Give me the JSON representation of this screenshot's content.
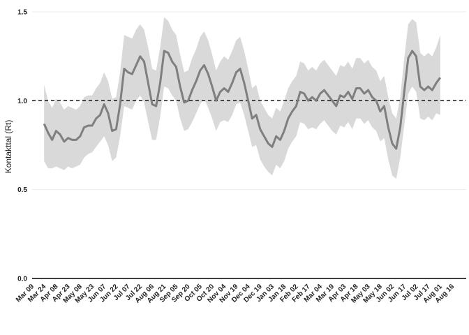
{
  "chart_data": {
    "type": "line",
    "title": "",
    "xlabel": "",
    "ylabel": "Kontakttal (Rt)",
    "ylim": [
      0,
      1.5
    ],
    "yticks": [
      "0.0",
      "0.5",
      "1.0",
      "1.5"
    ],
    "y_tick_values": [
      0,
      0.5,
      1.0,
      1.5
    ],
    "reference_line": {
      "y": 1.0,
      "style": "dashed",
      "color": "#000000"
    },
    "grid": true,
    "x_tick_labels": [
      "Mar 09",
      "Mar 24",
      "Apr 08",
      "Apr 23",
      "May 08",
      "May 23",
      "Jun 07",
      "Jun 22",
      "Jul 07",
      "Jul 22",
      "Aug 06",
      "Aug 21",
      "Sep 05",
      "Sep 20",
      "Oct 05",
      "Oct 20",
      "Nov 04",
      "Nov 19",
      "Dec 04",
      "Dec 19",
      "Jan 03",
      "Jan 18",
      "Feb 02",
      "Feb 17",
      "Mar 04",
      "Mar 19",
      "Apr 03",
      "Apr 18",
      "May 03",
      "May 18",
      "Jun 02",
      "Jun 17",
      "Jul 02",
      "Jul 17",
      "Aug 01",
      "Aug 16"
    ],
    "colors": {
      "line": "#7f7f7f",
      "ribbon": "#d9d9d9",
      "grid": "#ebebeb",
      "axis": "#000000"
    },
    "series": [
      {
        "x": [
          "2020-03-24",
          "2020-03-29",
          "2020-04-03",
          "2020-04-08",
          "2020-04-13",
          "2020-04-18",
          "2020-04-23",
          "2020-04-28",
          "2020-05-03",
          "2020-05-08",
          "2020-05-13",
          "2020-05-18",
          "2020-05-23",
          "2020-05-28",
          "2020-06-02",
          "2020-06-07",
          "2020-06-12",
          "2020-06-17",
          "2020-06-22",
          "2020-06-27",
          "2020-07-02",
          "2020-07-07",
          "2020-07-12",
          "2020-07-17",
          "2020-07-22",
          "2020-07-27",
          "2020-08-01",
          "2020-08-06",
          "2020-08-11",
          "2020-08-16",
          "2020-08-21",
          "2020-08-26",
          "2020-08-31",
          "2020-09-05",
          "2020-09-10",
          "2020-09-15",
          "2020-09-20",
          "2020-09-25",
          "2020-09-30",
          "2020-10-05",
          "2020-10-10",
          "2020-10-15",
          "2020-10-20",
          "2020-10-25",
          "2020-10-30",
          "2020-11-04",
          "2020-11-09",
          "2020-11-14",
          "2020-11-19",
          "2020-11-24",
          "2020-11-29",
          "2020-12-04",
          "2020-12-09",
          "2020-12-14",
          "2020-12-19",
          "2020-12-24",
          "2020-12-29",
          "2021-01-03",
          "2021-01-08",
          "2021-01-13",
          "2021-01-18",
          "2021-01-23",
          "2021-01-28",
          "2021-02-02",
          "2021-02-07",
          "2021-02-12",
          "2021-02-17",
          "2021-02-22",
          "2021-02-27",
          "2021-03-04",
          "2021-03-09",
          "2021-03-14",
          "2021-03-19",
          "2021-03-24",
          "2021-03-29",
          "2021-04-03",
          "2021-04-08",
          "2021-04-13",
          "2021-04-18",
          "2021-04-23",
          "2021-04-28",
          "2021-05-03",
          "2021-05-08",
          "2021-05-13",
          "2021-05-18",
          "2021-05-23",
          "2021-05-28",
          "2021-06-02",
          "2021-06-07",
          "2021-06-12",
          "2021-06-17",
          "2021-06-22",
          "2021-06-27",
          "2021-07-02",
          "2021-07-07",
          "2021-07-12",
          "2021-07-17",
          "2021-07-22",
          "2021-07-27",
          "2021-08-01"
        ],
        "y": [
          0.87,
          0.82,
          0.78,
          0.83,
          0.81,
          0.77,
          0.79,
          0.78,
          0.78,
          0.8,
          0.85,
          0.86,
          0.86,
          0.9,
          0.92,
          0.98,
          0.93,
          0.83,
          0.84,
          0.98,
          1.18,
          1.16,
          1.15,
          1.2,
          1.25,
          1.22,
          1.1,
          0.98,
          0.97,
          1.1,
          1.28,
          1.27,
          1.22,
          1.19,
          1.08,
          0.99,
          1.0,
          1.06,
          1.11,
          1.17,
          1.2,
          1.15,
          1.08,
          1.0,
          1.05,
          1.07,
          1.05,
          1.1,
          1.16,
          1.18,
          1.1,
          1.0,
          0.9,
          0.92,
          0.84,
          0.8,
          0.76,
          0.74,
          0.8,
          0.78,
          0.83,
          0.9,
          0.94,
          0.97,
          1.05,
          1.04,
          1.0,
          1.02,
          1.0,
          1.04,
          1.06,
          1.03,
          1.0,
          0.97,
          1.03,
          1.02,
          1.05,
          1.01,
          1.07,
          1.07,
          1.04,
          1.06,
          1.02,
          1.0,
          0.94,
          0.97,
          0.85,
          0.76,
          0.73,
          0.85,
          1.05,
          1.24,
          1.28,
          1.25,
          1.08,
          1.06,
          1.08,
          1.06,
          1.1,
          1.13
        ],
        "lower": [
          0.66,
          0.62,
          0.62,
          0.63,
          0.62,
          0.61,
          0.63,
          0.62,
          0.63,
          0.64,
          0.68,
          0.7,
          0.71,
          0.74,
          0.77,
          0.8,
          0.75,
          0.66,
          0.68,
          0.8,
          0.97,
          0.96,
          0.95,
          1.0,
          1.03,
          0.99,
          0.88,
          0.78,
          0.78,
          0.91,
          1.08,
          1.07,
          1.03,
          1.0,
          0.9,
          0.83,
          0.84,
          0.88,
          0.93,
          0.98,
          1.01,
          0.96,
          0.9,
          0.83,
          0.88,
          0.89,
          0.88,
          0.92,
          0.98,
          0.99,
          0.92,
          0.83,
          0.74,
          0.75,
          0.67,
          0.63,
          0.6,
          0.58,
          0.64,
          0.62,
          0.66,
          0.73,
          0.77,
          0.8,
          0.88,
          0.87,
          0.84,
          0.85,
          0.84,
          0.87,
          0.89,
          0.86,
          0.83,
          0.81,
          0.86,
          0.85,
          0.88,
          0.84,
          0.9,
          0.9,
          0.87,
          0.89,
          0.85,
          0.83,
          0.77,
          0.79,
          0.67,
          0.58,
          0.56,
          0.68,
          0.86,
          1.04,
          1.08,
          1.05,
          0.9,
          0.89,
          0.91,
          0.89,
          0.93,
          0.92
        ],
        "upper": [
          1.09,
          1.0,
          0.96,
          1.01,
          0.99,
          0.95,
          0.97,
          0.96,
          0.95,
          0.97,
          1.02,
          1.03,
          1.03,
          1.07,
          1.1,
          1.16,
          1.11,
          1.01,
          1.02,
          1.16,
          1.37,
          1.36,
          1.35,
          1.4,
          1.43,
          1.4,
          1.3,
          1.18,
          1.17,
          1.3,
          1.47,
          1.45,
          1.4,
          1.37,
          1.26,
          1.16,
          1.17,
          1.24,
          1.29,
          1.36,
          1.39,
          1.34,
          1.26,
          1.17,
          1.22,
          1.25,
          1.23,
          1.28,
          1.34,
          1.36,
          1.28,
          1.18,
          1.07,
          1.09,
          1.0,
          0.96,
          0.92,
          0.9,
          0.96,
          0.94,
          1.0,
          1.07,
          1.11,
          1.14,
          1.22,
          1.21,
          1.17,
          1.19,
          1.17,
          1.21,
          1.23,
          1.2,
          1.17,
          1.14,
          1.2,
          1.19,
          1.22,
          1.18,
          1.24,
          1.24,
          1.21,
          1.23,
          1.19,
          1.17,
          1.11,
          1.14,
          1.02,
          0.93,
          0.9,
          1.02,
          1.24,
          1.43,
          1.46,
          1.44,
          1.27,
          1.25,
          1.27,
          1.25,
          1.3,
          1.37
        ]
      }
    ]
  }
}
